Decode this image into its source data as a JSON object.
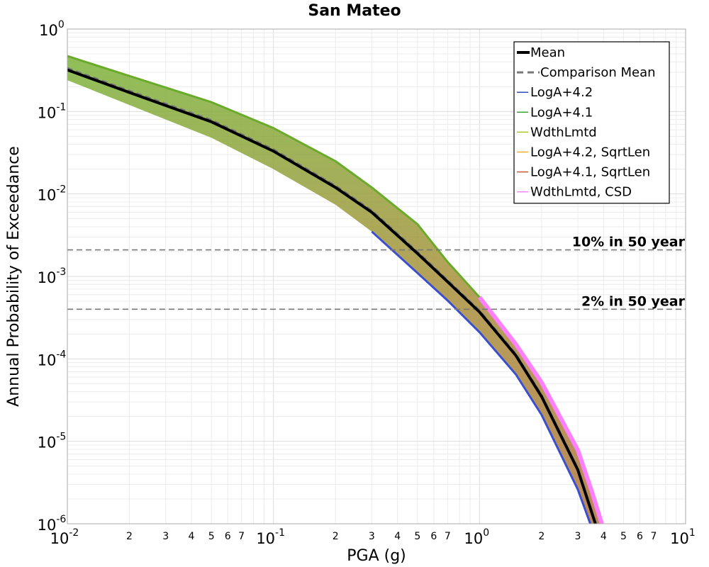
{
  "chart_data": {
    "type": "line",
    "title": "San Mateo",
    "xlabel": "PGA (g)",
    "ylabel": "Annual Probability of Exceedance",
    "x_scale": "log",
    "y_scale": "log",
    "xlim": [
      0.01,
      10
    ],
    "ylim": [
      1e-06,
      1
    ],
    "grid": true,
    "legend_position": "top-right",
    "x_major_ticks": [
      {
        "base": "10",
        "exp": "-2"
      },
      {
        "base": "10",
        "exp": "-1"
      },
      {
        "base": "10",
        "exp": "0"
      },
      {
        "base": "10",
        "exp": "1"
      }
    ],
    "x_minor_labels": [
      "2",
      "3",
      "4",
      "5",
      "6",
      "7"
    ],
    "y_major_ticks": [
      {
        "base": "10",
        "exp": "0"
      },
      {
        "base": "10",
        "exp": "-1"
      },
      {
        "base": "10",
        "exp": "-2"
      },
      {
        "base": "10",
        "exp": "-3"
      },
      {
        "base": "10",
        "exp": "-4"
      },
      {
        "base": "10",
        "exp": "-5"
      },
      {
        "base": "10",
        "exp": "-6"
      }
    ],
    "series": [
      {
        "name": "Mean",
        "color": "#000000",
        "x": [
          0.01,
          0.02,
          0.05,
          0.1,
          0.2,
          0.3,
          0.5,
          0.7,
          1.0,
          1.5,
          2.0,
          3.0,
          3.65
        ],
        "y": [
          0.32,
          0.17,
          0.075,
          0.033,
          0.012,
          0.006,
          0.0019,
          0.00086,
          0.00037,
          0.00011,
          3.5e-05,
          4.5e-06,
          1e-06
        ]
      }
    ],
    "comparison_mean_legend": "Comparison Mean",
    "branch_legends": [
      {
        "name": "LogA+4.2",
        "color": "#1f3fbf"
      },
      {
        "name": "LogA+4.1",
        "color": "#3a9a3a"
      },
      {
        "name": "WdthLmtd",
        "color": "#a8c21c"
      },
      {
        "name": "LogA+4.2, SqrtLen",
        "color": "#f0a91c"
      },
      {
        "name": "LogA+4.1, SqrtLen",
        "color": "#c0522a"
      },
      {
        "name": "WdthLmtd, CSD",
        "color": "#ff80ff"
      }
    ],
    "band": {
      "x": [
        0.01,
        0.02,
        0.05,
        0.1,
        0.2,
        0.3,
        0.5,
        0.7,
        1.0,
        1.5,
        2.0,
        3.0,
        3.5,
        4.0
      ],
      "upper": [
        0.47,
        0.27,
        0.13,
        0.063,
        0.025,
        0.012,
        0.0043,
        0.0015,
        0.00056,
        0.00015,
        5.2e-05,
        7.8e-06,
        2.5e-06,
        8.5e-07
      ],
      "lower": [
        0.24,
        0.12,
        0.048,
        0.02,
        0.0074,
        0.0035,
        0.0011,
        0.00051,
        0.00021,
        6.5e-05,
        2.1e-05,
        2.6e-06,
        9e-07,
        4e-07
      ]
    },
    "reference_lines": [
      {
        "label": "10% in 50 year",
        "y": 0.0021
      },
      {
        "label": "2% in 50 year",
        "y": 0.0004
      }
    ]
  }
}
